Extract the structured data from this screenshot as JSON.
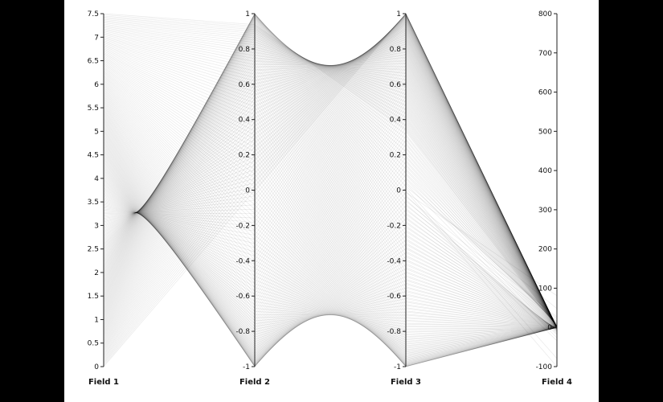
{
  "chart_data": {
    "type": "parallel-coordinates",
    "background": "#ffffff",
    "line_color": "#000000",
    "grid": false,
    "axes": [
      {
        "label": "Field 1",
        "range": [
          0,
          7.5
        ],
        "ticks": [
          "0",
          "0.5",
          "1",
          "1.5",
          "2",
          "2.5",
          "3",
          "3.5",
          "4",
          "4.5",
          "5",
          "5.5",
          "6",
          "6.5",
          "7",
          "7.5"
        ],
        "tick_values": [
          0,
          0.5,
          1,
          1.5,
          2,
          2.5,
          3,
          3.5,
          4,
          4.5,
          5,
          5.5,
          6,
          6.5,
          7,
          7.5
        ]
      },
      {
        "label": "Field 2",
        "range": [
          -1,
          1
        ],
        "ticks": [
          "-1",
          "-0.8",
          "-0.6",
          "-0.4",
          "-0.2",
          "0",
          "0.2",
          "0.4",
          "0.6",
          "0.8",
          "1"
        ],
        "tick_values": [
          -1,
          -0.8,
          -0.6,
          -0.4,
          -0.2,
          0,
          0.2,
          0.4,
          0.6,
          0.8,
          1
        ]
      },
      {
        "label": "Field 3",
        "range": [
          -1,
          1
        ],
        "ticks": [
          "-1",
          "-0.8",
          "-0.6",
          "-0.4",
          "-0.2",
          "0",
          "0.2",
          "0.4",
          "0.6",
          "0.8",
          "1"
        ],
        "tick_values": [
          -1,
          -0.8,
          -0.6,
          -0.4,
          -0.2,
          0,
          0.2,
          0.4,
          0.6,
          0.8,
          1
        ]
      },
      {
        "label": "Field 4",
        "range": [
          -100,
          800
        ],
        "ticks": [
          "-100",
          "0",
          "100",
          "200",
          "300",
          "400",
          "500",
          "600",
          "700",
          "800"
        ],
        "tick_values": [
          -100,
          0,
          100,
          200,
          300,
          400,
          500,
          600,
          700,
          800
        ]
      }
    ],
    "records": {
      "field_1": "t for t from 0 to 7.5",
      "field_2": "sin(t)",
      "field_3": "cos(t)",
      "field_4": "tan(t)"
    }
  }
}
